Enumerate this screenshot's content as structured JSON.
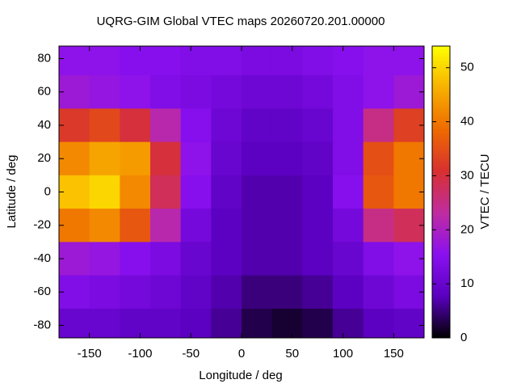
{
  "chart_data": {
    "type": "heatmap",
    "title": "UQRG-GIM Global VTEC maps 20260720.201.00000",
    "xlabel": "Longitude / deg",
    "ylabel": "Latitude / deg",
    "zlabel": "VTEC / TECU",
    "x": [
      -165,
      -135,
      -105,
      -75,
      -45,
      -15,
      15,
      45,
      75,
      105,
      135,
      165
    ],
    "y": [
      80,
      60,
      40,
      20,
      0,
      -20,
      -40,
      -60,
      -80
    ],
    "z": [
      [
        16,
        16,
        15,
        15,
        14,
        14,
        13,
        13,
        14,
        15,
        16,
        16
      ],
      [
        18,
        17,
        16,
        14,
        13,
        12,
        11,
        11,
        12,
        14,
        16,
        18
      ],
      [
        32,
        34,
        30,
        22,
        15,
        11,
        9,
        9,
        10,
        14,
        25,
        33
      ],
      [
        42,
        45,
        44,
        30,
        16,
        10,
        8,
        8,
        9,
        14,
        35,
        40
      ],
      [
        48,
        50,
        42,
        28,
        15,
        9,
        7,
        7,
        8,
        15,
        36,
        40
      ],
      [
        40,
        42,
        36,
        22,
        12,
        8,
        7,
        7,
        8,
        12,
        25,
        28
      ],
      [
        18,
        17,
        15,
        13,
        10,
        8,
        7,
        7,
        8,
        10,
        14,
        16
      ],
      [
        14,
        13,
        12,
        11,
        9,
        7,
        5,
        5,
        6,
        8,
        11,
        13
      ],
      [
        10,
        10,
        9,
        9,
        8,
        6,
        3,
        2,
        3,
        6,
        8,
        9
      ]
    ],
    "xlim": [
      -180,
      180
    ],
    "xticks": [
      -150,
      -100,
      -50,
      0,
      50,
      100,
      150
    ],
    "ylim": [
      -87.5,
      87.5
    ],
    "yticks": [
      -80,
      -60,
      -40,
      -20,
      0,
      20,
      40,
      60,
      80
    ],
    "zlim": [
      0,
      54
    ],
    "zticks": [
      0,
      10,
      20,
      30,
      40,
      50
    ],
    "colormap": [
      "#000000",
      "#5a00c0",
      "#8a10f0",
      "#c02ca0",
      "#d83030",
      "#ee6a00",
      "#f8b000",
      "#ffff00"
    ]
  }
}
